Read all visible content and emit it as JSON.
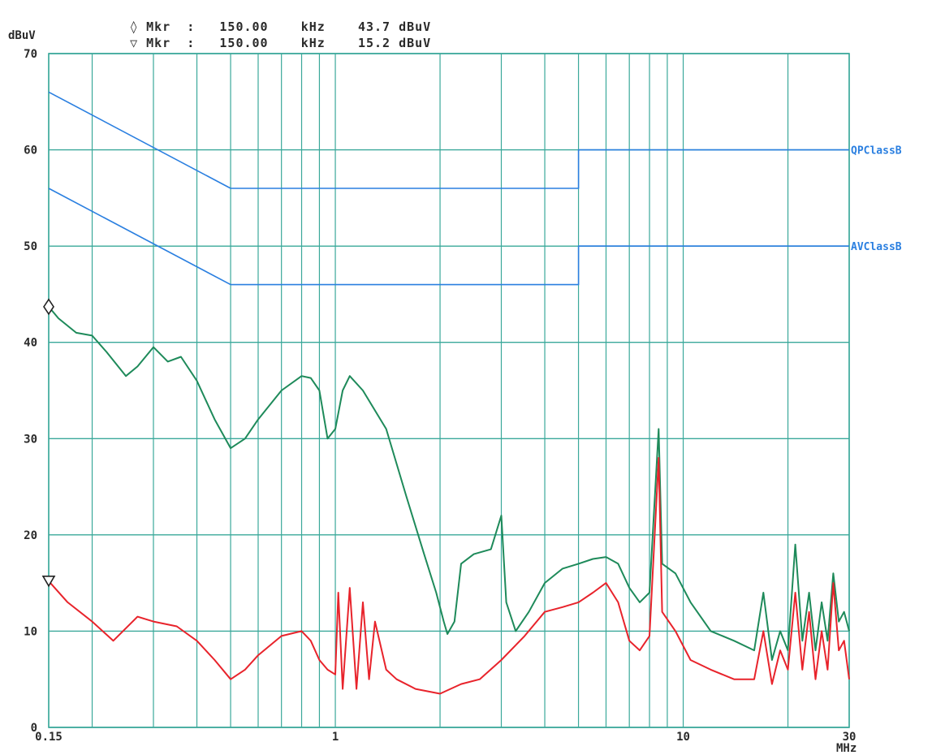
{
  "header": {
    "markers": [
      {
        "symbol": "◊",
        "label": "Mkr",
        "sep": ":",
        "freq": "150.00",
        "unit": "kHz",
        "level": "43.7 dBuV"
      },
      {
        "symbol": "▽",
        "label": "Mkr",
        "sep": ":",
        "freq": "150.00",
        "unit": "kHz",
        "level": "15.2 dBuV"
      }
    ]
  },
  "chart_data": {
    "type": "line",
    "xscale": "log",
    "xlim": [
      0.15,
      30
    ],
    "ylim": [
      0,
      70
    ],
    "ylabel": "dBuV",
    "xlabel": "MHz",
    "grid": true,
    "yticks": [
      "0",
      "10",
      "20",
      "30",
      "40",
      "50",
      "60",
      "70"
    ],
    "xtick_labels": [
      {
        "value": 0.15,
        "label": "0.15"
      },
      {
        "value": 1,
        "label": "1"
      },
      {
        "value": 10,
        "label": "10"
      },
      {
        "value": 30,
        "label": "30"
      }
    ],
    "x_gridlines": [
      0.15,
      0.2,
      0.3,
      0.4,
      0.5,
      0.6,
      0.7,
      0.8,
      0.9,
      1,
      2,
      3,
      4,
      5,
      6,
      7,
      8,
      9,
      10,
      20,
      30
    ],
    "limit_labels": [
      {
        "text": "QPClassB",
        "y": 60
      },
      {
        "text": "AVClassB",
        "y": 50
      }
    ],
    "colors": {
      "grid": "#3aa89a",
      "limit": "#2a7fe0",
      "qp": "#1e8a5a",
      "av": "#e8232b",
      "text": "#2a2a2a",
      "label": "#2a7fe0"
    },
    "series": [
      {
        "name": "QPClassB",
        "kind": "limit",
        "points": [
          [
            0.15,
            66
          ],
          [
            0.5,
            56
          ],
          [
            5,
            56
          ],
          [
            5,
            60
          ],
          [
            30,
            60
          ]
        ]
      },
      {
        "name": "AVClassB",
        "kind": "limit",
        "points": [
          [
            0.15,
            56
          ],
          [
            0.5,
            46
          ],
          [
            5,
            46
          ],
          [
            5,
            50
          ],
          [
            30,
            50
          ]
        ]
      },
      {
        "kind": "qp",
        "points": [
          [
            0.15,
            43.7
          ],
          [
            0.16,
            42.5
          ],
          [
            0.18,
            41
          ],
          [
            0.2,
            40.7
          ],
          [
            0.22,
            39
          ],
          [
            0.25,
            36.5
          ],
          [
            0.27,
            37.5
          ],
          [
            0.3,
            39.5
          ],
          [
            0.33,
            38
          ],
          [
            0.36,
            38.5
          ],
          [
            0.4,
            36
          ],
          [
            0.45,
            32
          ],
          [
            0.5,
            29
          ],
          [
            0.55,
            30
          ],
          [
            0.6,
            32
          ],
          [
            0.7,
            35
          ],
          [
            0.8,
            36.5
          ],
          [
            0.85,
            36.3
          ],
          [
            0.9,
            35
          ],
          [
            0.95,
            30
          ],
          [
            1.0,
            31
          ],
          [
            1.05,
            35
          ],
          [
            1.1,
            36.5
          ],
          [
            1.2,
            35
          ],
          [
            1.4,
            31
          ],
          [
            1.6,
            24
          ],
          [
            1.8,
            18
          ],
          [
            1.95,
            14
          ],
          [
            2.05,
            11
          ],
          [
            2.1,
            9.7
          ],
          [
            2.2,
            11
          ],
          [
            2.3,
            17
          ],
          [
            2.5,
            18
          ],
          [
            2.8,
            18.5
          ],
          [
            3.0,
            22
          ],
          [
            3.1,
            13
          ],
          [
            3.3,
            10
          ],
          [
            3.6,
            12
          ],
          [
            4.0,
            15
          ],
          [
            4.5,
            16.5
          ],
          [
            5.0,
            17
          ],
          [
            5.5,
            17.5
          ],
          [
            6,
            17.7
          ],
          [
            6.5,
            17
          ],
          [
            7,
            14.5
          ],
          [
            7.5,
            13
          ],
          [
            8.0,
            14
          ],
          [
            8.5,
            31
          ],
          [
            8.7,
            17
          ],
          [
            9.5,
            16
          ],
          [
            10.5,
            13
          ],
          [
            12,
            10
          ],
          [
            14,
            9
          ],
          [
            16,
            8
          ],
          [
            17,
            14
          ],
          [
            18,
            7
          ],
          [
            19,
            10
          ],
          [
            20,
            8
          ],
          [
            21,
            19
          ],
          [
            22,
            9
          ],
          [
            23,
            14
          ],
          [
            24,
            8
          ],
          [
            25,
            13
          ],
          [
            26,
            9
          ],
          [
            27,
            16
          ],
          [
            28,
            11
          ],
          [
            29,
            12
          ],
          [
            30,
            10
          ]
        ]
      },
      {
        "kind": "av",
        "points": [
          [
            0.15,
            15.2
          ],
          [
            0.17,
            13
          ],
          [
            0.2,
            11
          ],
          [
            0.23,
            9
          ],
          [
            0.27,
            11.5
          ],
          [
            0.3,
            11
          ],
          [
            0.35,
            10.5
          ],
          [
            0.4,
            9
          ],
          [
            0.45,
            7
          ],
          [
            0.5,
            5
          ],
          [
            0.55,
            6
          ],
          [
            0.6,
            7.5
          ],
          [
            0.7,
            9.5
          ],
          [
            0.8,
            10
          ],
          [
            0.85,
            9
          ],
          [
            0.9,
            7
          ],
          [
            0.95,
            6
          ],
          [
            1.0,
            5.5
          ],
          [
            1.02,
            14
          ],
          [
            1.05,
            4
          ],
          [
            1.1,
            14.5
          ],
          [
            1.15,
            4
          ],
          [
            1.2,
            13
          ],
          [
            1.25,
            5
          ],
          [
            1.3,
            11
          ],
          [
            1.4,
            6
          ],
          [
            1.5,
            5
          ],
          [
            1.7,
            4
          ],
          [
            2.0,
            3.5
          ],
          [
            2.3,
            4.5
          ],
          [
            2.6,
            5
          ],
          [
            3.0,
            7
          ],
          [
            3.5,
            9.5
          ],
          [
            4.0,
            12
          ],
          [
            4.5,
            12.5
          ],
          [
            5.0,
            13
          ],
          [
            5.5,
            14
          ],
          [
            6.0,
            15
          ],
          [
            6.5,
            13
          ],
          [
            7.0,
            9
          ],
          [
            7.5,
            8
          ],
          [
            8.0,
            9.5
          ],
          [
            8.5,
            28
          ],
          [
            8.7,
            12
          ],
          [
            9.5,
            10
          ],
          [
            10.5,
            7
          ],
          [
            12,
            6
          ],
          [
            14,
            5
          ],
          [
            16,
            5
          ],
          [
            17,
            10
          ],
          [
            18,
            4.5
          ],
          [
            19,
            8
          ],
          [
            20,
            6
          ],
          [
            21,
            14
          ],
          [
            22,
            6
          ],
          [
            23,
            12
          ],
          [
            24,
            5
          ],
          [
            25,
            10
          ],
          [
            26,
            6
          ],
          [
            27,
            15
          ],
          [
            28,
            8
          ],
          [
            29,
            9
          ],
          [
            30,
            5
          ]
        ]
      }
    ]
  }
}
